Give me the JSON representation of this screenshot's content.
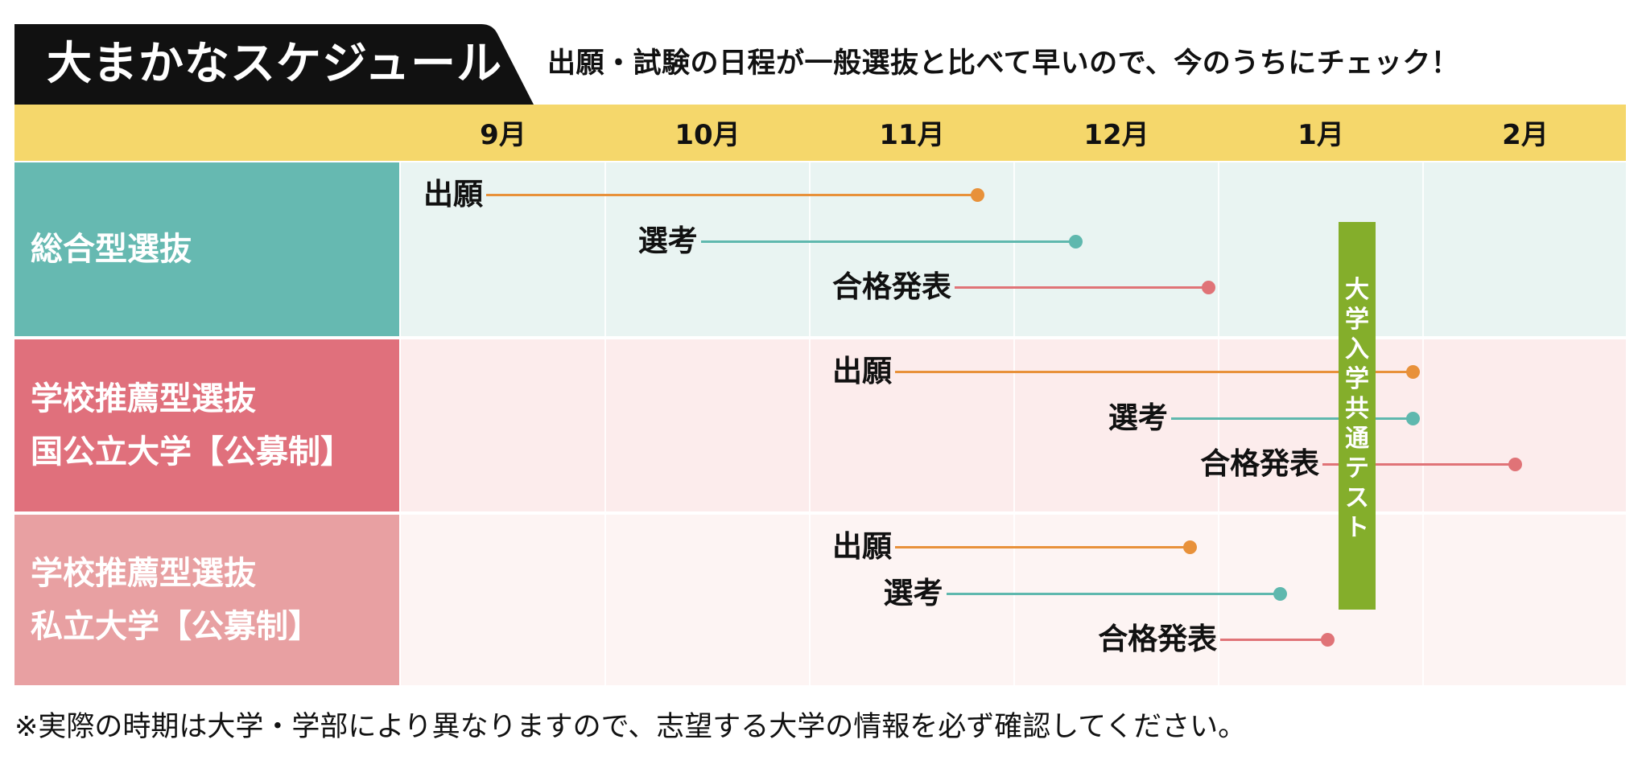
{
  "header": {
    "title": "大まかなスケジュール",
    "subtitle": "出願・試験の日程が一般選抜と比べて早いので、今のうちにチェック！"
  },
  "months": [
    "9月",
    "10月",
    "11月",
    "12月",
    "1月",
    "2月"
  ],
  "rows": [
    {
      "label_lines": [
        "総合型選抜"
      ],
      "color": "#66b9b1",
      "body_color": "#e9f4f2",
      "items": [
        {
          "label": "出願",
          "start_month": 9.0,
          "end_month": 11.82,
          "color": "#e8913a"
        },
        {
          "label": "選考",
          "start_month": 10.05,
          "end_month": 12.3,
          "color": "#5fb8ae"
        },
        {
          "label": "合格発表",
          "start_month": 11.0,
          "end_month": 12.95,
          "color": "#e07377"
        }
      ]
    },
    {
      "label_lines": [
        "学校推薦型選抜",
        "国公立大学【公募制】"
      ],
      "color": "#e0707c",
      "body_color": "#fcecec",
      "items": [
        {
          "label": "出願",
          "start_month": 11.0,
          "end_month": 13.95,
          "color": "#e8913a"
        },
        {
          "label": "選考",
          "start_month": 12.35,
          "end_month": 13.95,
          "color": "#5fb8ae"
        },
        {
          "label": "合格発表",
          "start_month": 12.8,
          "end_month": 14.45,
          "color": "#e07377"
        }
      ]
    },
    {
      "label_lines": [
        "学校推薦型選抜",
        "私立大学【公募制】"
      ],
      "color": "#e8a0a2",
      "body_color": "#fdf4f3",
      "items": [
        {
          "label": "出願",
          "start_month": 11.0,
          "end_month": 12.86,
          "color": "#e8913a"
        },
        {
          "label": "選考",
          "start_month": 11.25,
          "end_month": 13.3,
          "color": "#5fb8ae"
        },
        {
          "label": "合格発表",
          "start_month": 12.3,
          "end_month": 13.53,
          "color": "#e07377"
        }
      ]
    }
  ],
  "common_test": {
    "chars": [
      "大",
      "学",
      "入",
      "学",
      "共",
      "通",
      "テ",
      "ス",
      "ト"
    ],
    "color": "#84ae2b"
  },
  "footnote": "※実際の時期は大学・学部により異なりますので、志望する大学の情報を必ず確認してください。"
}
